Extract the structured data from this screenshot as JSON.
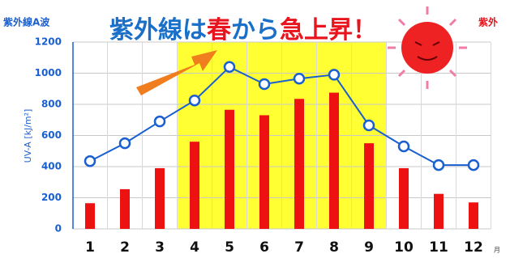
{
  "chart_data": {
    "type": "bar-line",
    "title_parts": [
      {
        "text": "紫外線は",
        "color": "#1a6fc8"
      },
      {
        "text": "春",
        "color": "#e8141e"
      },
      {
        "text": "から",
        "color": "#1a6fc8"
      },
      {
        "text": "急上昇！",
        "color": "#e8141e"
      }
    ],
    "left_label": "紫外線A波",
    "right_label": "紫外",
    "ylabel": "UV-A [kJ/m²]",
    "x_unit": "月",
    "categories": [
      "1",
      "2",
      "3",
      "4",
      "5",
      "6",
      "7",
      "8",
      "9",
      "10",
      "11",
      "12"
    ],
    "series": [
      {
        "kind": "bar",
        "color": "#ee1111",
        "values": [
          165,
          255,
          390,
          560,
          765,
          730,
          835,
          875,
          550,
          390,
          225,
          170
        ]
      },
      {
        "kind": "line",
        "color": "#1a5fd0",
        "values": [
          435,
          550,
          690,
          825,
          1040,
          930,
          965,
          990,
          665,
          530,
          410,
          410
        ]
      }
    ],
    "ylim": [
      0,
      1200
    ],
    "yticks": [
      0,
      200,
      400,
      600,
      800,
      1000,
      1200
    ],
    "grid": true
  }
}
